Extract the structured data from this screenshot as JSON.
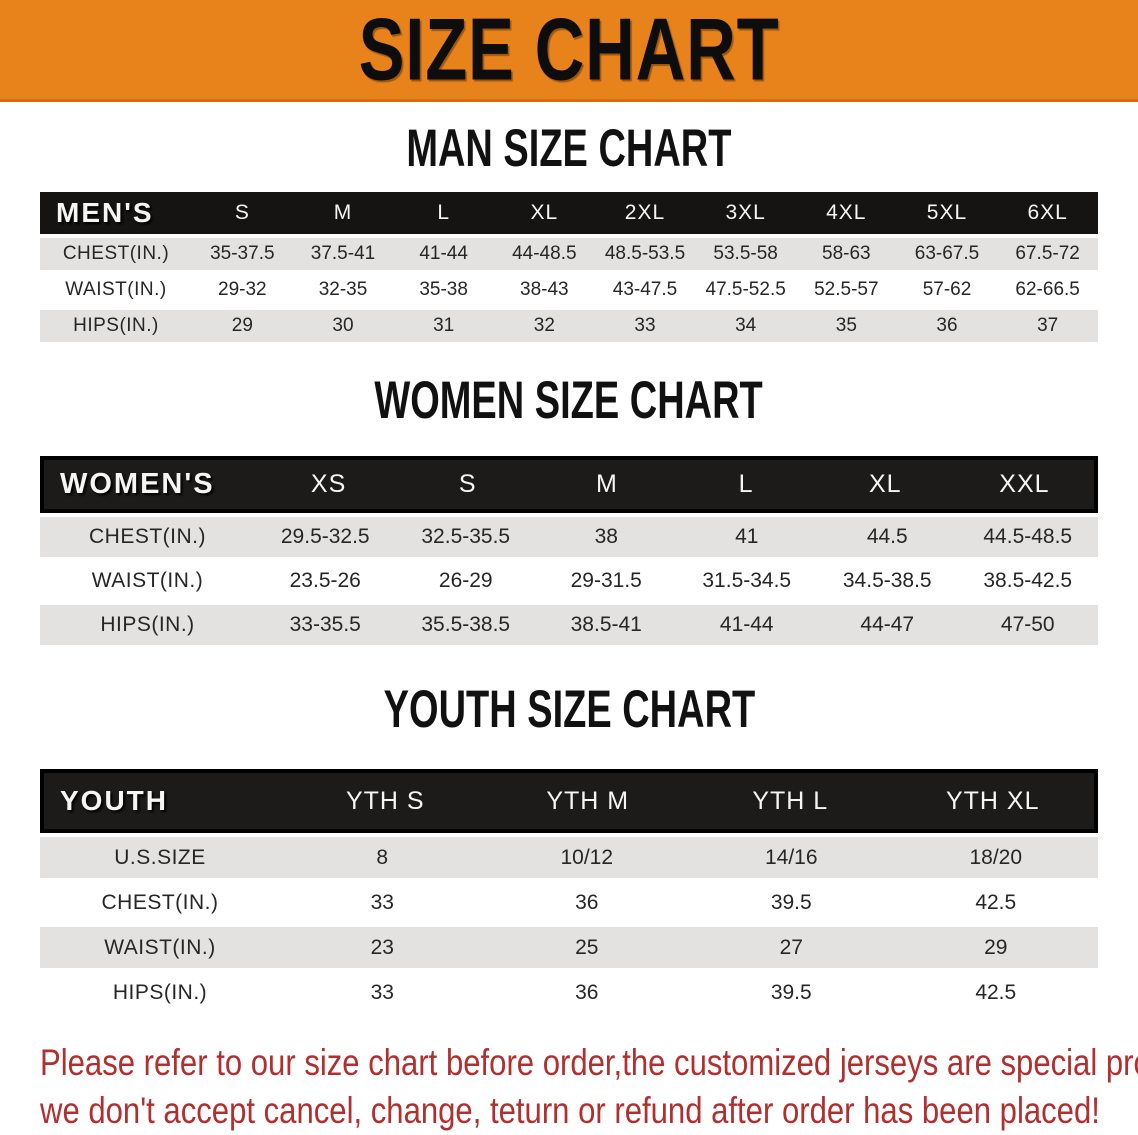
{
  "banner": {
    "title": "SIZE CHART",
    "bg_color": "#e8831c",
    "text_color": "#0d0d0d"
  },
  "tables": [
    {
      "id": "men",
      "section_title": "MAN SIZE CHART",
      "header_label": "MEN'S",
      "columns": [
        "S",
        "M",
        "L",
        "XL",
        "2XL",
        "3XL",
        "4XL",
        "5XL",
        "6XL"
      ],
      "rows": [
        {
          "label": "CHEST(IN.)",
          "values": [
            "35-37.5",
            "37.5-41",
            "41-44",
            "44-48.5",
            "48.5-53.5",
            "53.5-58",
            "58-63",
            "63-67.5",
            "67.5-72"
          ]
        },
        {
          "label": "WAIST(IN.)",
          "values": [
            "29-32",
            "32-35",
            "35-38",
            "38-43",
            "43-47.5",
            "47.5-52.5",
            "52.5-57",
            "57-62",
            "62-66.5"
          ]
        },
        {
          "label": "HIPS(IN.)",
          "values": [
            "29",
            "30",
            "31",
            "32",
            "33",
            "34",
            "35",
            "36",
            "37"
          ]
        }
      ]
    },
    {
      "id": "women",
      "section_title": "WOMEN SIZE CHART",
      "header_label": "WOMEN'S",
      "columns": [
        "XS",
        "S",
        "M",
        "L",
        "XL",
        "XXL"
      ],
      "rows": [
        {
          "label": "CHEST(IN.)",
          "values": [
            "29.5-32.5",
            "32.5-35.5",
            "38",
            "41",
            "44.5",
            "44.5-48.5"
          ]
        },
        {
          "label": "WAIST(IN.)",
          "values": [
            "23.5-26",
            "26-29",
            "29-31.5",
            "31.5-34.5",
            "34.5-38.5",
            "38.5-42.5"
          ]
        },
        {
          "label": "HIPS(IN.)",
          "values": [
            "33-35.5",
            "35.5-38.5",
            "38.5-41",
            "41-44",
            "44-47",
            "47-50"
          ]
        }
      ]
    },
    {
      "id": "youth",
      "section_title": "YOUTH SIZE CHART",
      "header_label": "YOUTH",
      "columns": [
        "YTH S",
        "YTH M",
        "YTH L",
        "YTH XL"
      ],
      "rows": [
        {
          "label": "U.S.SIZE",
          "values": [
            "8",
            "10/12",
            "14/16",
            "18/20"
          ]
        },
        {
          "label": "CHEST(IN.)",
          "values": [
            "33",
            "36",
            "39.5",
            "42.5"
          ]
        },
        {
          "label": "WAIST(IN.)",
          "values": [
            "23",
            "25",
            "27",
            "29"
          ]
        },
        {
          "label": "HIPS(IN.)",
          "values": [
            "33",
            "36",
            "39.5",
            "42.5"
          ]
        }
      ]
    }
  ],
  "table_style": {
    "header_bg": "#161412",
    "shaded_row_bg": "#e3e2e1",
    "plain_row_bg": "#ffffff"
  },
  "disclaimer": {
    "line1": "Please refer to our size chart before order,the customized jerseys are special products,",
    "line2": "we don't accept cancel, change, teturn or refund after order has been placed!",
    "color": "#b02f2f"
  }
}
